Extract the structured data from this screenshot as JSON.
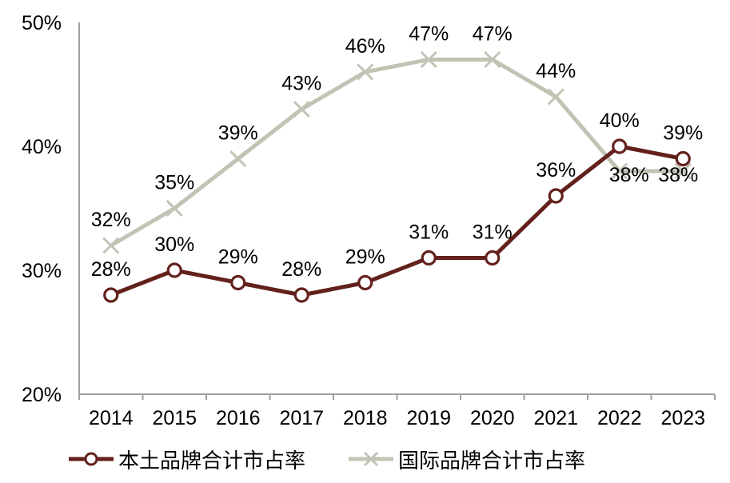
{
  "chart_data": {
    "type": "line",
    "categories": [
      "2014",
      "2015",
      "2016",
      "2017",
      "2018",
      "2019",
      "2020",
      "2021",
      "2022",
      "2023"
    ],
    "series": [
      {
        "name": "本土品牌合计市占率",
        "marker": "circle",
        "color": "#63211C",
        "values": [
          28,
          30,
          29,
          28,
          29,
          31,
          31,
          36,
          40,
          39
        ],
        "labels": [
          "28%",
          "30%",
          "29%",
          "28%",
          "29%",
          "31%",
          "31%",
          "36%",
          "40%",
          "39%"
        ]
      },
      {
        "name": "国际品牌合计市占率",
        "marker": "x",
        "color": "#C3C3B5",
        "values": [
          32,
          35,
          39,
          43,
          46,
          47,
          47,
          44,
          38,
          38
        ],
        "labels": [
          "32%",
          "35%",
          "39%",
          "43%",
          "46%",
          "47%",
          "47%",
          "44%",
          "38%",
          "38%"
        ],
        "label_offsets": {
          "8": [
            12,
            13
          ],
          "9": [
            -6,
            13
          ]
        }
      }
    ],
    "ylim": [
      20,
      50
    ],
    "yticks": [
      {
        "value": 50,
        "label": "50%"
      },
      {
        "value": 40,
        "label": "40%"
      },
      {
        "value": 30,
        "label": "30%"
      },
      {
        "value": 20,
        "label": "20%"
      }
    ],
    "grid": false,
    "legend_position": "bottom"
  },
  "colors": {
    "axis": "#A0A0A0",
    "text": "#000000",
    "background": "#FFFFFF"
  }
}
